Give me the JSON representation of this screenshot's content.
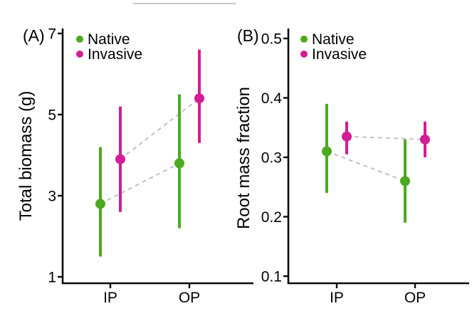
{
  "figure": {
    "background": "#ffffff",
    "text_color": "#000000",
    "axis_color": "#0a0a0a",
    "connector_color": "#bcbcbc",
    "edge_artifact_color": "#c9c9c9",
    "colors": {
      "native": "#4caa20",
      "invasive": "#d41c96"
    }
  },
  "chart_data": [
    {
      "type": "pointrange",
      "panel_tag": "(A)",
      "ylabel": "Total biomass (g)",
      "xlabel": "",
      "categories": [
        "IP",
        "OP"
      ],
      "yticks": [
        1,
        3,
        5,
        7
      ],
      "ytick_labels": [
        "1",
        "3",
        "5",
        "7"
      ],
      "ylim": [
        1,
        7
      ],
      "grid": false,
      "legend_position": "top-left-inside",
      "connector_style": "dashed",
      "series": [
        {
          "name": "Native",
          "color": "#4caa20",
          "points": [
            {
              "category": "IP",
              "mean": 2.8,
              "lower": 1.5,
              "upper": 4.2
            },
            {
              "category": "OP",
              "mean": 3.8,
              "lower": 2.2,
              "upper": 5.5
            }
          ]
        },
        {
          "name": "Invasive",
          "color": "#d41c96",
          "points": [
            {
              "category": "IP",
              "mean": 3.9,
              "lower": 2.6,
              "upper": 5.2
            },
            {
              "category": "OP",
              "mean": 5.4,
              "lower": 4.3,
              "upper": 6.6
            }
          ]
        }
      ]
    },
    {
      "type": "pointrange",
      "panel_tag": "(B)",
      "ylabel": "Root mass fraction",
      "xlabel": "",
      "categories": [
        "IP",
        "OP"
      ],
      "yticks": [
        0.1,
        0.2,
        0.3,
        0.4,
        0.5
      ],
      "ytick_labels": [
        "0.1",
        "0.2",
        "0.3",
        "0.4",
        "0.5"
      ],
      "ylim": [
        0.1,
        0.5
      ],
      "grid": false,
      "legend_position": "top-left-inside",
      "connector_style": "dashed",
      "series": [
        {
          "name": "Native",
          "color": "#4caa20",
          "points": [
            {
              "category": "IP",
              "mean": 0.31,
              "lower": 0.24,
              "upper": 0.39
            },
            {
              "category": "OP",
              "mean": 0.26,
              "lower": 0.19,
              "upper": 0.33
            }
          ]
        },
        {
          "name": "Invasive",
          "color": "#d41c96",
          "points": [
            {
              "category": "IP",
              "mean": 0.335,
              "lower": 0.305,
              "upper": 0.36
            },
            {
              "category": "OP",
              "mean": 0.33,
              "lower": 0.3,
              "upper": 0.36
            }
          ]
        }
      ]
    }
  ]
}
